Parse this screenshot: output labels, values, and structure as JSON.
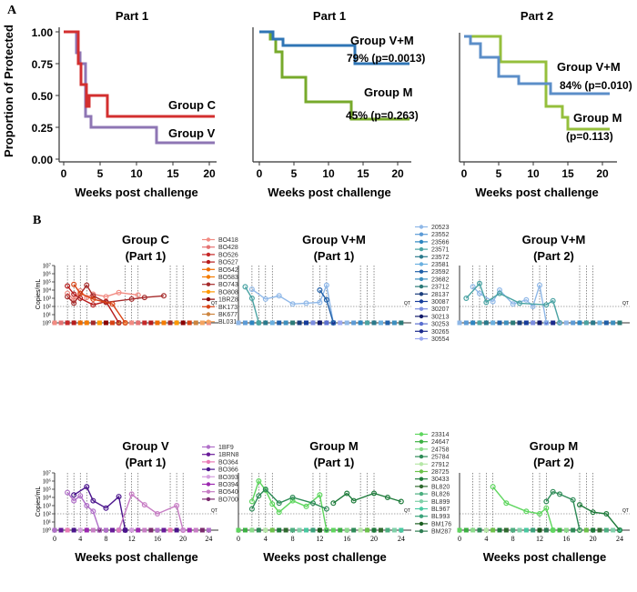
{
  "panel_A": {
    "label": "A",
    "y_axis_label": "Proportion of Protected",
    "y_ticks": [
      "0.00",
      "0.25",
      "0.50",
      "0.75",
      "1.00"
    ],
    "x_ticks": [
      "0",
      "5",
      "10",
      "15",
      "20"
    ],
    "x_axis_label": "Weeks post challenge",
    "charts": [
      {
        "title": "Part 1",
        "series": [
          {
            "name": "Group C",
            "color": "#d32f2f"
          },
          {
            "name": "Group V",
            "color": "#8e76b4"
          }
        ]
      },
      {
        "title": "Part 1",
        "series": [
          {
            "name": "Group V+M",
            "color": "#2f75b5",
            "annotation": "79% (p=0.0013)"
          },
          {
            "name": "Group M",
            "color": "#77aa2b",
            "annotation": "45% (p=0.263)"
          }
        ]
      },
      {
        "title": "Part 2",
        "series": [
          {
            "name": "Group V+M",
            "color": "#5b8ec8",
            "annotation": "84% (p=0.010)"
          },
          {
            "name": "Group M",
            "color": "#95bf3c",
            "annotation": "(p=0.113)"
          }
        ]
      }
    ]
  },
  "panel_B": {
    "label": "B",
    "y_axis_label": "Copies/mL",
    "y_ticks": [
      "10⁰",
      "10¹",
      "10²",
      "10³",
      "10⁴",
      "10⁵",
      "10⁶",
      "10⁷"
    ],
    "x_ticks": [
      "0",
      "4",
      "8",
      "12",
      "16",
      "20",
      "24"
    ],
    "x_axis_label": "Weeks post challenge",
    "qt_label": "QT",
    "plots": [
      {
        "title_line1": "Group C",
        "title_line2": "(Part 1)",
        "legend": [
          "BO418",
          "BO428",
          "BO526",
          "BO527",
          "BO542",
          "BO583",
          "BO743",
          "BO808",
          "1BRZ8",
          "BK173",
          "BK677",
          "BL031"
        ],
        "colors": [
          "#f28b82",
          "#e57373",
          "#c62828",
          "#b71c1c",
          "#ef6c00",
          "#f57c00",
          "#a52a2a",
          "#ff9800",
          "#8b0000",
          "#d84315",
          "#cd853f",
          "#f4a460"
        ]
      },
      {
        "title_line1": "Group V+M",
        "title_line2": "(Part 1)",
        "legend": [
          "20523",
          "23552",
          "23566",
          "23571",
          "23572",
          "23581",
          "23592",
          "23682",
          "23712",
          "28137",
          "30087",
          "30207",
          "30213",
          "30253",
          "30265",
          "30554"
        ],
        "colors": [
          "#8fb8e8",
          "#5c9bd6",
          "#2e86c1",
          "#4aa3a3",
          "#2a7a8c",
          "#6ab0e0",
          "#1f5fa8",
          "#3d8fbf",
          "#2b7a78",
          "#1a3d7c",
          "#163d9b",
          "#7a8de0",
          "#101a6b",
          "#5a6fd0",
          "#1b2a8c",
          "#9aa8f0"
        ]
      },
      {
        "title_line1": "Group V+M",
        "title_line2": "(Part 2)"
      },
      {
        "title_line1": "Group V",
        "title_line2": "(Part 1)",
        "legend": [
          "1BF9",
          "1BRN8",
          "BO364",
          "BO366",
          "BO393",
          "BO394",
          "BO540",
          "BO700"
        ],
        "colors": [
          "#b06fc8",
          "#6a1b9a",
          "#e97bb6",
          "#4a148c",
          "#d6a0e0",
          "#9c27b0",
          "#c77dc4",
          "#7b2a6e"
        ]
      },
      {
        "title_line1": "Group M",
        "title_line2": "(Part 1)",
        "legend": [
          "23314",
          "24647",
          "24758",
          "25784",
          "27912",
          "28725",
          "30433",
          "BL820",
          "BL826",
          "BL899",
          "BL967",
          "BL993",
          "BM176",
          "BM287"
        ],
        "colors": [
          "#5ed65e",
          "#3cb043",
          "#8bdc8b",
          "#2e8b57",
          "#b6e8a8",
          "#6cc24a",
          "#1e7b3b",
          "#2f6b2f",
          "#4caf80",
          "#7fd0a8",
          "#48c9a0",
          "#3aa37a",
          "#1b5e20",
          "#2e7d52"
        ]
      },
      {
        "title_line1": "Group M",
        "title_line2": "(Part 2)"
      }
    ]
  }
}
